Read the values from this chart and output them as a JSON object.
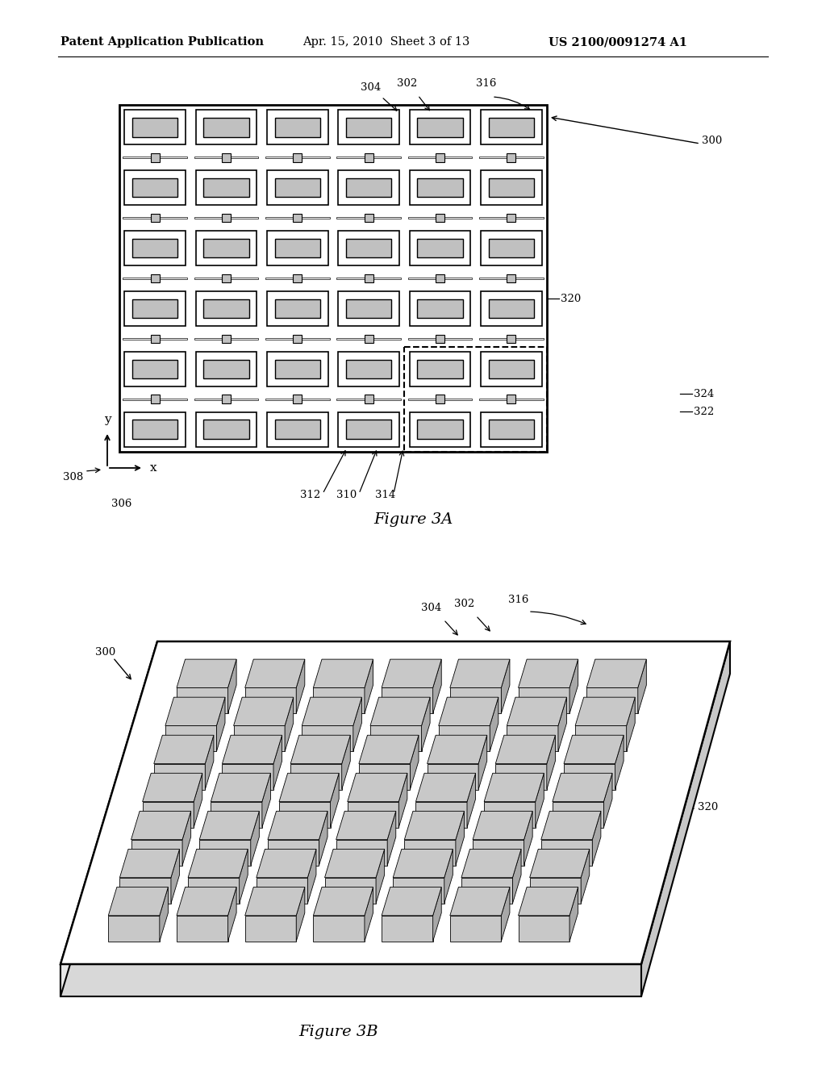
{
  "bg_color": "#ffffff",
  "line_color": "#000000",
  "gray_fill": "#c0c0c0",
  "header_left": "Patent Application Publication",
  "header_mid": "Apr. 15, 2010  Sheet 3 of 13",
  "header_right": "US 2100/0091274 A1",
  "fig3a_caption": "Figure 3A",
  "fig3b_caption": "Figure 3B"
}
